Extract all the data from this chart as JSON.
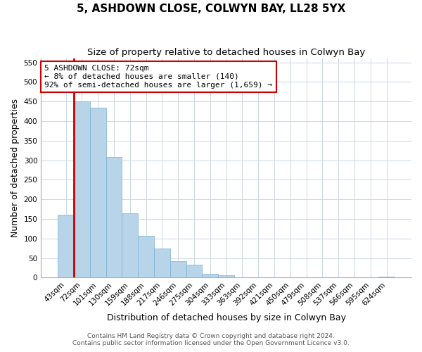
{
  "title": "5, ASHDOWN CLOSE, COLWYN BAY, LL28 5YX",
  "subtitle": "Size of property relative to detached houses in Colwyn Bay",
  "xlabel": "Distribution of detached houses by size in Colwyn Bay",
  "ylabel": "Number of detached properties",
  "categories": [
    "43sqm",
    "72sqm",
    "101sqm",
    "130sqm",
    "159sqm",
    "188sqm",
    "217sqm",
    "246sqm",
    "275sqm",
    "304sqm",
    "333sqm",
    "363sqm",
    "392sqm",
    "421sqm",
    "450sqm",
    "479sqm",
    "508sqm",
    "537sqm",
    "566sqm",
    "595sqm",
    "624sqm"
  ],
  "values": [
    160,
    450,
    435,
    308,
    165,
    107,
    75,
    43,
    33,
    10,
    7,
    0,
    0,
    0,
    0,
    0,
    0,
    0,
    0,
    0,
    3
  ],
  "bar_color": "#b8d4e8",
  "bar_edge_color": "#7aafd4",
  "highlight_index": 1,
  "highlight_color": "#cc0000",
  "annotation_title": "5 ASHDOWN CLOSE: 72sqm",
  "annotation_line1": "← 8% of detached houses are smaller (140)",
  "annotation_line2": "92% of semi-detached houses are larger (1,659) →",
  "annotation_box_color": "#ffffff",
  "annotation_box_edge_color": "#cc0000",
  "ylim": [
    0,
    560
  ],
  "yticks": [
    0,
    50,
    100,
    150,
    200,
    250,
    300,
    350,
    400,
    450,
    500,
    550
  ],
  "footer_line1": "Contains HM Land Registry data © Crown copyright and database right 2024.",
  "footer_line2": "Contains public sector information licensed under the Open Government Licence v3.0.",
  "background_color": "#ffffff",
  "grid_color": "#c8d8e8",
  "title_fontsize": 11,
  "subtitle_fontsize": 9.5,
  "axis_label_fontsize": 9,
  "tick_fontsize": 7.5,
  "footer_fontsize": 6.5,
  "annotation_fontsize": 8
}
